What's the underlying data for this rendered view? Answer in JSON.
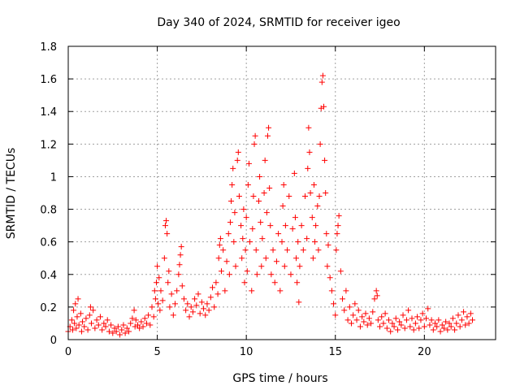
{
  "chart_data": {
    "type": "scatter",
    "title": "Day 340 of 2024, SRMTID for receiver igeo",
    "xlabel": "GPS time / hours",
    "ylabel": "SRMTID / TECUs",
    "xlim": [
      0,
      24
    ],
    "ylim": [
      0,
      1.8
    ],
    "xticks": [
      0,
      5,
      10,
      15,
      20
    ],
    "xtick_labels": [
      "0",
      "5",
      "10",
      "15",
      "20"
    ],
    "yticks": [
      0,
      0.2,
      0.4,
      0.6,
      0.8,
      1,
      1.2,
      1.4,
      1.6,
      1.8
    ],
    "ytick_labels": [
      "0",
      "0.2",
      "0.4",
      "0.6",
      "0.8",
      "1",
      "1.2",
      "1.4",
      "1.6",
      "1.8"
    ],
    "grid": true,
    "marker": "+",
    "marker_color": "#ff0000",
    "series": [
      {
        "name": "SRMTID",
        "points": [
          [
            0.0,
            0.05
          ],
          [
            0.1,
            0.08
          ],
          [
            0.2,
            0.12
          ],
          [
            0.25,
            0.06
          ],
          [
            0.3,
            0.18
          ],
          [
            0.35,
            0.1
          ],
          [
            0.4,
            0.22
          ],
          [
            0.45,
            0.07
          ],
          [
            0.5,
            0.14
          ],
          [
            0.55,
            0.25
          ],
          [
            0.6,
            0.09
          ],
          [
            0.7,
            0.16
          ],
          [
            0.75,
            0.05
          ],
          [
            0.8,
            0.11
          ],
          [
            0.9,
            0.08
          ],
          [
            1.0,
            0.13
          ],
          [
            1.1,
            0.06
          ],
          [
            1.2,
            0.15
          ],
          [
            1.25,
            0.2
          ],
          [
            1.3,
            0.1
          ],
          [
            1.4,
            0.18
          ],
          [
            1.5,
            0.07
          ],
          [
            1.6,
            0.12
          ],
          [
            1.7,
            0.09
          ],
          [
            1.8,
            0.14
          ],
          [
            1.9,
            0.06
          ],
          [
            2.0,
            0.1
          ],
          [
            2.1,
            0.08
          ],
          [
            2.2,
            0.12
          ],
          [
            2.3,
            0.05
          ],
          [
            2.4,
            0.09
          ],
          [
            2.5,
            0.04
          ],
          [
            2.6,
            0.07
          ],
          [
            2.7,
            0.05
          ],
          [
            2.8,
            0.08
          ],
          [
            2.9,
            0.03
          ],
          [
            3.0,
            0.06
          ],
          [
            3.1,
            0.09
          ],
          [
            3.2,
            0.04
          ],
          [
            3.3,
            0.07
          ],
          [
            3.4,
            0.05
          ],
          [
            3.5,
            0.1
          ],
          [
            3.6,
            0.13
          ],
          [
            3.7,
            0.18
          ],
          [
            3.75,
            0.08
          ],
          [
            3.8,
            0.12
          ],
          [
            3.9,
            0.09
          ],
          [
            4.0,
            0.07
          ],
          [
            4.1,
            0.11
          ],
          [
            4.2,
            0.08
          ],
          [
            4.3,
            0.13
          ],
          [
            4.4,
            0.1
          ],
          [
            4.5,
            0.15
          ],
          [
            4.6,
            0.09
          ],
          [
            4.7,
            0.2
          ],
          [
            4.8,
            0.14
          ],
          [
            4.85,
            0.3
          ],
          [
            4.9,
            0.25
          ],
          [
            4.95,
            0.35
          ],
          [
            5.0,
            0.45
          ],
          [
            5.05,
            0.22
          ],
          [
            5.1,
            0.38
          ],
          [
            5.15,
            0.18
          ],
          [
            5.2,
            0.3
          ],
          [
            5.3,
            0.24
          ],
          [
            5.4,
            0.5
          ],
          [
            5.45,
            0.7
          ],
          [
            5.5,
            0.73
          ],
          [
            5.55,
            0.65
          ],
          [
            5.6,
            0.35
          ],
          [
            5.65,
            0.42
          ],
          [
            5.7,
            0.2
          ],
          [
            5.8,
            0.28
          ],
          [
            5.9,
            0.15
          ],
          [
            6.0,
            0.22
          ],
          [
            6.1,
            0.3
          ],
          [
            6.2,
            0.4
          ],
          [
            6.25,
            0.46
          ],
          [
            6.3,
            0.52
          ],
          [
            6.35,
            0.57
          ],
          [
            6.4,
            0.33
          ],
          [
            6.5,
            0.25
          ],
          [
            6.6,
            0.18
          ],
          [
            6.7,
            0.22
          ],
          [
            6.8,
            0.14
          ],
          [
            6.9,
            0.2
          ],
          [
            7.0,
            0.17
          ],
          [
            7.1,
            0.25
          ],
          [
            7.2,
            0.21
          ],
          [
            7.3,
            0.28
          ],
          [
            7.4,
            0.16
          ],
          [
            7.5,
            0.23
          ],
          [
            7.6,
            0.19
          ],
          [
            7.7,
            0.15
          ],
          [
            7.8,
            0.22
          ],
          [
            7.9,
            0.18
          ],
          [
            8.0,
            0.26
          ],
          [
            8.1,
            0.32
          ],
          [
            8.2,
            0.2
          ],
          [
            8.3,
            0.35
          ],
          [
            8.4,
            0.28
          ],
          [
            8.45,
            0.5
          ],
          [
            8.5,
            0.58
          ],
          [
            8.55,
            0.62
          ],
          [
            8.6,
            0.42
          ],
          [
            8.7,
            0.55
          ],
          [
            8.8,
            0.3
          ],
          [
            8.9,
            0.48
          ],
          [
            9.0,
            0.65
          ],
          [
            9.05,
            0.4
          ],
          [
            9.1,
            0.72
          ],
          [
            9.15,
            0.85
          ],
          [
            9.2,
            0.95
          ],
          [
            9.25,
            1.05
          ],
          [
            9.3,
            0.6
          ],
          [
            9.35,
            0.78
          ],
          [
            9.4,
            0.45
          ],
          [
            9.5,
            1.1
          ],
          [
            9.55,
            1.15
          ],
          [
            9.6,
            0.88
          ],
          [
            9.7,
            0.7
          ],
          [
            9.75,
            0.5
          ],
          [
            9.8,
            0.62
          ],
          [
            9.85,
            0.8
          ],
          [
            9.9,
            0.35
          ],
          [
            9.95,
            0.55
          ],
          [
            10.0,
            0.75
          ],
          [
            10.05,
            0.42
          ],
          [
            10.1,
            0.95
          ],
          [
            10.15,
            1.08
          ],
          [
            10.2,
            0.6
          ],
          [
            10.3,
            0.3
          ],
          [
            10.35,
            0.68
          ],
          [
            10.4,
            0.88
          ],
          [
            10.45,
            1.2
          ],
          [
            10.5,
            1.25
          ],
          [
            10.55,
            0.55
          ],
          [
            10.6,
            0.4
          ],
          [
            10.7,
            0.85
          ],
          [
            10.75,
            1.0
          ],
          [
            10.8,
            0.72
          ],
          [
            10.85,
            0.45
          ],
          [
            10.9,
            0.62
          ],
          [
            11.0,
            0.9
          ],
          [
            11.05,
            1.1
          ],
          [
            11.1,
            0.5
          ],
          [
            11.15,
            0.78
          ],
          [
            11.2,
            1.25
          ],
          [
            11.25,
            1.3
          ],
          [
            11.3,
            0.93
          ],
          [
            11.35,
            0.7
          ],
          [
            11.4,
            0.4
          ],
          [
            11.5,
            0.55
          ],
          [
            11.6,
            0.35
          ],
          [
            11.7,
            0.48
          ],
          [
            11.8,
            0.65
          ],
          [
            11.9,
            0.3
          ],
          [
            12.0,
            0.6
          ],
          [
            12.05,
            0.82
          ],
          [
            12.1,
            0.95
          ],
          [
            12.15,
            0.45
          ],
          [
            12.2,
            0.7
          ],
          [
            12.3,
            0.55
          ],
          [
            12.4,
            0.88
          ],
          [
            12.5,
            0.4
          ],
          [
            12.6,
            0.68
          ],
          [
            12.7,
            1.02
          ],
          [
            12.75,
            0.75
          ],
          [
            12.8,
            0.5
          ],
          [
            12.85,
            0.35
          ],
          [
            12.9,
            0.6
          ],
          [
            12.95,
            0.23
          ],
          [
            13.0,
            0.45
          ],
          [
            13.1,
            0.7
          ],
          [
            13.2,
            0.55
          ],
          [
            13.3,
            0.88
          ],
          [
            13.4,
            0.62
          ],
          [
            13.45,
            1.05
          ],
          [
            13.5,
            1.3
          ],
          [
            13.55,
            1.15
          ],
          [
            13.6,
            0.9
          ],
          [
            13.7,
            0.75
          ],
          [
            13.75,
            0.5
          ],
          [
            13.8,
            0.95
          ],
          [
            13.85,
            0.6
          ],
          [
            13.9,
            0.7
          ],
          [
            14.0,
            0.82
          ],
          [
            14.05,
            0.55
          ],
          [
            14.1,
            0.88
          ],
          [
            14.15,
            1.2
          ],
          [
            14.2,
            1.42
          ],
          [
            14.25,
            1.58
          ],
          [
            14.3,
            1.62
          ],
          [
            14.35,
            1.43
          ],
          [
            14.4,
            1.1
          ],
          [
            14.45,
            0.9
          ],
          [
            14.5,
            0.65
          ],
          [
            14.55,
            0.45
          ],
          [
            14.6,
            0.58
          ],
          [
            14.7,
            0.38
          ],
          [
            14.8,
            0.3
          ],
          [
            14.9,
            0.22
          ],
          [
            15.0,
            0.15
          ],
          [
            15.05,
            0.55
          ],
          [
            15.1,
            0.65
          ],
          [
            15.15,
            0.7
          ],
          [
            15.2,
            0.76
          ],
          [
            15.3,
            0.42
          ],
          [
            15.4,
            0.25
          ],
          [
            15.5,
            0.18
          ],
          [
            15.6,
            0.3
          ],
          [
            15.7,
            0.12
          ],
          [
            15.8,
            0.2
          ],
          [
            15.9,
            0.1
          ],
          [
            16.0,
            0.15
          ],
          [
            16.1,
            0.22
          ],
          [
            16.2,
            0.12
          ],
          [
            16.3,
            0.18
          ],
          [
            16.4,
            0.08
          ],
          [
            16.5,
            0.14
          ],
          [
            16.6,
            0.11
          ],
          [
            16.7,
            0.16
          ],
          [
            16.8,
            0.09
          ],
          [
            16.9,
            0.13
          ],
          [
            17.0,
            0.1
          ],
          [
            17.1,
            0.17
          ],
          [
            17.2,
            0.25
          ],
          [
            17.3,
            0.3
          ],
          [
            17.35,
            0.27
          ],
          [
            17.4,
            0.12
          ],
          [
            17.5,
            0.08
          ],
          [
            17.6,
            0.14
          ],
          [
            17.7,
            0.1
          ],
          [
            17.8,
            0.16
          ],
          [
            17.9,
            0.07
          ],
          [
            18.0,
            0.12
          ],
          [
            18.1,
            0.05
          ],
          [
            18.2,
            0.1
          ],
          [
            18.3,
            0.08
          ],
          [
            18.4,
            0.13
          ],
          [
            18.5,
            0.06
          ],
          [
            18.6,
            0.11
          ],
          [
            18.7,
            0.09
          ],
          [
            18.8,
            0.15
          ],
          [
            18.9,
            0.07
          ],
          [
            19.0,
            0.12
          ],
          [
            19.1,
            0.18
          ],
          [
            19.2,
            0.08
          ],
          [
            19.3,
            0.13
          ],
          [
            19.4,
            0.06
          ],
          [
            19.5,
            0.1
          ],
          [
            19.6,
            0.14
          ],
          [
            19.7,
            0.07
          ],
          [
            19.8,
            0.12
          ],
          [
            19.9,
            0.16
          ],
          [
            20.0,
            0.08
          ],
          [
            20.1,
            0.13
          ],
          [
            20.2,
            0.19
          ],
          [
            20.3,
            0.09
          ],
          [
            20.4,
            0.12
          ],
          [
            20.5,
            0.06
          ],
          [
            20.6,
            0.1
          ],
          [
            20.7,
            0.08
          ],
          [
            20.8,
            0.12
          ],
          [
            20.9,
            0.05
          ],
          [
            21.0,
            0.09
          ],
          [
            21.1,
            0.07
          ],
          [
            21.2,
            0.11
          ],
          [
            21.3,
            0.06
          ],
          [
            21.4,
            0.1
          ],
          [
            21.5,
            0.08
          ],
          [
            21.6,
            0.13
          ],
          [
            21.7,
            0.06
          ],
          [
            21.8,
            0.1
          ],
          [
            21.9,
            0.15
          ],
          [
            22.0,
            0.08
          ],
          [
            22.1,
            0.12
          ],
          [
            22.2,
            0.17
          ],
          [
            22.3,
            0.09
          ],
          [
            22.4,
            0.14
          ],
          [
            22.5,
            0.1
          ],
          [
            22.6,
            0.16
          ],
          [
            22.7,
            0.12
          ]
        ]
      }
    ]
  }
}
